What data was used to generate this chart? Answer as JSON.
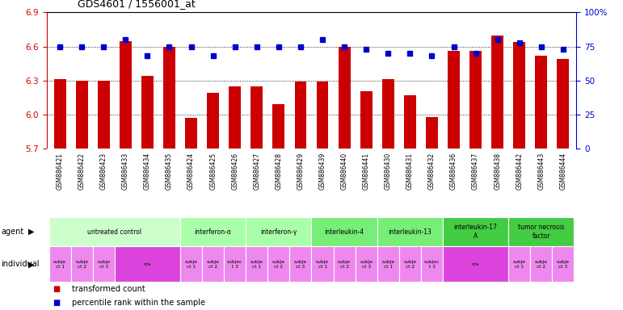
{
  "title": "GDS4601 / 1556001_at",
  "samples": [
    "GSM886421",
    "GSM886422",
    "GSM886423",
    "GSM886433",
    "GSM886434",
    "GSM886435",
    "GSM886424",
    "GSM886425",
    "GSM886426",
    "GSM886427",
    "GSM886428",
    "GSM886429",
    "GSM886439",
    "GSM886440",
    "GSM886441",
    "GSM886430",
    "GSM886431",
    "GSM886432",
    "GSM886436",
    "GSM886437",
    "GSM886438",
    "GSM886442",
    "GSM886443",
    "GSM886444"
  ],
  "bar_values": [
    6.31,
    6.3,
    6.3,
    6.65,
    6.34,
    6.6,
    5.97,
    6.19,
    6.25,
    6.25,
    6.09,
    6.29,
    6.29,
    6.6,
    6.21,
    6.31,
    6.17,
    5.98,
    6.56,
    6.56,
    6.7,
    6.64,
    6.52,
    6.49
  ],
  "percentile_values": [
    75,
    75,
    75,
    80,
    68,
    75,
    75,
    68,
    75,
    75,
    75,
    75,
    80,
    75,
    73,
    70,
    70,
    68,
    75,
    70,
    80,
    78,
    75,
    73
  ],
  "ylim_left": [
    5.7,
    6.9
  ],
  "ylim_right": [
    0,
    100
  ],
  "yticks_left": [
    5.7,
    6.0,
    6.3,
    6.6,
    6.9
  ],
  "yticks_right": [
    0,
    25,
    50,
    75,
    100
  ],
  "ytick_labels_right": [
    "0",
    "25",
    "50",
    "75",
    "100%"
  ],
  "bar_color": "#cc0000",
  "dot_color": "#0000cc",
  "bg_color": "#ffffff",
  "xtick_bg": "#cccccc",
  "agent_groups": [
    {
      "label": "untreated control",
      "start": 0,
      "end": 6,
      "color": "#ccffcc"
    },
    {
      "label": "interferon-α",
      "start": 6,
      "end": 9,
      "color": "#aaffaa"
    },
    {
      "label": "interferon-γ",
      "start": 9,
      "end": 12,
      "color": "#aaffaa"
    },
    {
      "label": "interleukin-4",
      "start": 12,
      "end": 15,
      "color": "#77ee77"
    },
    {
      "label": "interleukin-13",
      "start": 15,
      "end": 18,
      "color": "#77ee77"
    },
    {
      "label": "interleukin-17\nA",
      "start": 18,
      "end": 21,
      "color": "#44cc44"
    },
    {
      "label": "tumor necrosis\nfactor",
      "start": 21,
      "end": 24,
      "color": "#44cc44"
    }
  ],
  "individual_groups": [
    {
      "label": "subje\nct 1",
      "start": 0,
      "end": 1,
      "color": "#ee88ee"
    },
    {
      "label": "subje\nct 2",
      "start": 1,
      "end": 2,
      "color": "#ee88ee"
    },
    {
      "label": "subje\nct 3",
      "start": 2,
      "end": 3,
      "color": "#ee88ee"
    },
    {
      "label": "n/a",
      "start": 3,
      "end": 6,
      "color": "#dd44dd"
    },
    {
      "label": "subje\nct 1",
      "start": 6,
      "end": 7,
      "color": "#ee88ee"
    },
    {
      "label": "subje\nct 2",
      "start": 7,
      "end": 8,
      "color": "#ee88ee"
    },
    {
      "label": "subjec\nt 3",
      "start": 8,
      "end": 9,
      "color": "#ee88ee"
    },
    {
      "label": "subje\nct 1",
      "start": 9,
      "end": 10,
      "color": "#ee88ee"
    },
    {
      "label": "subje\nct 2",
      "start": 10,
      "end": 11,
      "color": "#ee88ee"
    },
    {
      "label": "subje\nct 3",
      "start": 11,
      "end": 12,
      "color": "#ee88ee"
    },
    {
      "label": "subje\nct 1",
      "start": 12,
      "end": 13,
      "color": "#ee88ee"
    },
    {
      "label": "subje\nct 2",
      "start": 13,
      "end": 14,
      "color": "#ee88ee"
    },
    {
      "label": "subje\nct 3",
      "start": 14,
      "end": 15,
      "color": "#ee88ee"
    },
    {
      "label": "subje\nct 1",
      "start": 15,
      "end": 16,
      "color": "#ee88ee"
    },
    {
      "label": "subje\nct 2",
      "start": 16,
      "end": 17,
      "color": "#ee88ee"
    },
    {
      "label": "subjec\nt 3",
      "start": 17,
      "end": 18,
      "color": "#ee88ee"
    },
    {
      "label": "n/a",
      "start": 18,
      "end": 21,
      "color": "#dd44dd"
    },
    {
      "label": "subje\nct 1",
      "start": 21,
      "end": 22,
      "color": "#ee88ee"
    },
    {
      "label": "subje\nct 2",
      "start": 22,
      "end": 23,
      "color": "#ee88ee"
    },
    {
      "label": "subje\nct 3",
      "start": 23,
      "end": 24,
      "color": "#ee88ee"
    }
  ],
  "legend_items": [
    {
      "label": "transformed count",
      "color": "#cc0000"
    },
    {
      "label": "percentile rank within the sample",
      "color": "#0000cc"
    }
  ]
}
